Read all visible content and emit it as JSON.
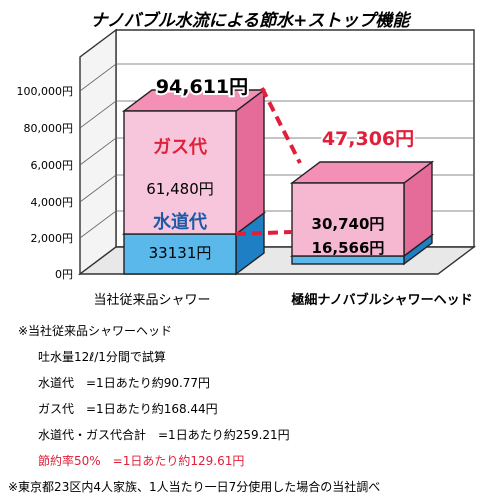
{
  "title": "ナノバブル水流による節水+ストップ機能",
  "chart_data": {
    "type": "bar",
    "stacked": true,
    "categories": [
      "当社従来品シャワー",
      "極細ナノバブルシャワーヘッド"
    ],
    "yticks": [
      "0円",
      "2,000円",
      "4,000円",
      "6,000円",
      "80,000円",
      "100,000円"
    ],
    "series": [
      {
        "name": "水道代",
        "values": [
          33131,
          16566
        ],
        "labels": [
          "33131円",
          "16,566円"
        ]
      },
      {
        "name": "ガス代",
        "values": [
          61480,
          30740
        ],
        "labels": [
          "61,480円",
          "30,740円"
        ]
      }
    ],
    "totals": [
      94611,
      47306
    ],
    "total_labels": [
      "94,611円",
      "47,306円"
    ],
    "ylim": [
      0,
      100000
    ],
    "colors": {
      "water_front": "#5bb8ea",
      "water_side": "#1e7fc4",
      "water_top": "#8ed0f2",
      "gas_front": "#f8c6dc",
      "gas_side": "#e56b98",
      "gas_top": "#f48fb6",
      "gas_front2": "#f6b7d0",
      "accent_red": "#e0203a",
      "label_blue": "#1a5aa8"
    }
  },
  "notes": [
    "※当社従来品シャワーヘッド",
    "吐水量12ℓ/1分間で試算",
    "水道代　=1日あたり約90.77円",
    "ガス代　=1日あたり約168.44円",
    "水道代・ガス代合計　=1日あたり約259.21円",
    "節約率50%　=1日あたり約129.61円",
    "※東京都23区内4人家族、1人当たり一日7分使用した場合の当社調べ"
  ]
}
